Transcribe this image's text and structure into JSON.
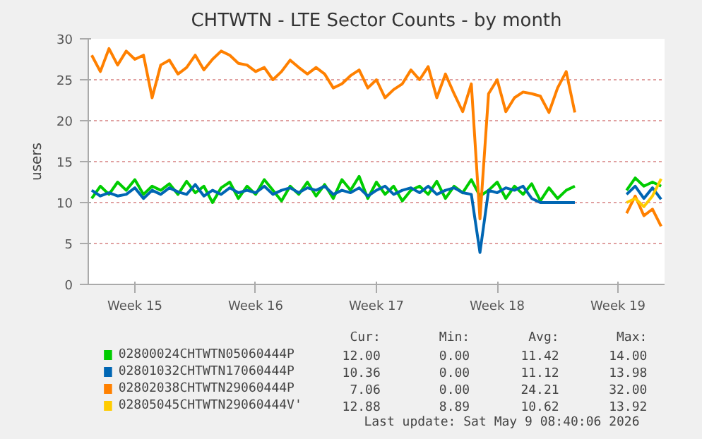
{
  "chart_data": {
    "type": "line",
    "title": "CHTWTN - LTE Sector Counts - by month",
    "ylabel": "users",
    "categories": [
      null,
      null,
      null,
      null,
      null,
      "Week 15",
      null,
      null,
      null,
      null,
      null,
      null,
      null,
      null,
      null,
      null,
      null,
      null,
      null,
      "Week 16",
      null,
      null,
      null,
      null,
      null,
      null,
      null,
      null,
      null,
      null,
      null,
      null,
      null,
      "Week 17",
      null,
      null,
      null,
      null,
      null,
      null,
      null,
      null,
      null,
      null,
      null,
      null,
      null,
      "Week 18",
      null,
      null,
      null,
      null,
      null,
      null,
      null,
      null,
      null,
      null,
      null,
      null,
      null,
      "Week 19",
      null,
      null,
      null,
      null,
      null
    ],
    "ylim": [
      0,
      30
    ],
    "yticks": [
      0,
      5,
      10,
      15,
      20,
      25,
      30
    ],
    "grid": "y",
    "legend": "bottom",
    "series": [
      {
        "name": "02800024CHTWTN05060444P",
        "color": "#00cc00",
        "values": [
          10.5,
          12,
          11,
          12.5,
          11.5,
          12.8,
          11,
          12,
          11.5,
          12.3,
          11,
          12.6,
          11.2,
          12,
          10,
          11.8,
          12.5,
          10.5,
          12,
          11,
          12.8,
          11.5,
          10.2,
          12,
          11,
          12.5,
          10.8,
          12.2,
          10.5,
          12.8,
          11.5,
          13.2,
          10.5,
          12.5,
          11,
          12,
          10.2,
          11.5,
          12,
          11,
          12.6,
          10.5,
          12,
          11.2,
          12.8,
          10.8,
          11.5,
          12.5,
          10.5,
          12,
          11,
          12.3,
          10.2,
          11.8,
          10.5,
          11.5,
          12,
          null,
          null,
          null,
          null,
          null,
          11.5,
          13,
          12,
          12.5,
          12
        ]
      },
      {
        "name": "02801032CHTWTN17060444P",
        "color": "#0066b3",
        "values": [
          11.5,
          10.8,
          11.2,
          10.8,
          11,
          11.8,
          10.5,
          11.5,
          11,
          11.8,
          11.3,
          11,
          12.2,
          10.8,
          11.5,
          11,
          11.8,
          11.2,
          11.5,
          11.2,
          12,
          11,
          11.5,
          11.8,
          11.2,
          11.8,
          11.5,
          12,
          11,
          11.5,
          11.2,
          11.8,
          10.8,
          11.5,
          12,
          11,
          11.5,
          11.8,
          11.2,
          12,
          11,
          11.5,
          11.8,
          11.2,
          11,
          3.9,
          11.5,
          11.2,
          11.8,
          11.5,
          12,
          10.5,
          10,
          10,
          10,
          10,
          10,
          null,
          null,
          null,
          null,
          null,
          11,
          12,
          10.5,
          11.8,
          10.4
        ]
      },
      {
        "name": "02802038CHTWTN29060444P",
        "color": "#ff8000",
        "values": [
          28,
          26,
          28.8,
          26.8,
          28.5,
          27.5,
          28,
          22.8,
          26.8,
          27.4,
          25.7,
          26.5,
          28,
          26.2,
          27.5,
          28.5,
          28,
          27,
          26.8,
          26,
          26.5,
          25,
          26,
          27.4,
          26.5,
          25.7,
          26.5,
          25.7,
          24,
          24.5,
          25.5,
          26.2,
          24,
          25,
          22.8,
          23.8,
          24.5,
          26.2,
          25,
          26.6,
          22.8,
          25.7,
          23.3,
          21.1,
          24.5,
          8,
          23.3,
          25,
          21.1,
          22.8,
          23.5,
          23.3,
          23,
          21,
          24,
          26,
          21,
          null,
          null,
          null,
          null,
          null,
          8.7,
          10.8,
          8.4,
          9.2,
          7.1
        ]
      },
      {
        "name": "02805045CHTWTN29060444V'",
        "color": "#ffcc00",
        "values": [
          null,
          null,
          null,
          null,
          null,
          null,
          null,
          null,
          null,
          null,
          null,
          null,
          null,
          null,
          null,
          null,
          null,
          null,
          null,
          null,
          null,
          null,
          null,
          null,
          null,
          null,
          null,
          null,
          null,
          null,
          null,
          null,
          null,
          null,
          null,
          null,
          null,
          null,
          null,
          null,
          null,
          null,
          null,
          null,
          null,
          null,
          null,
          null,
          null,
          null,
          null,
          null,
          null,
          null,
          null,
          null,
          null,
          null,
          null,
          null,
          null,
          null,
          10,
          10.5,
          9.5,
          10.8,
          12.9
        ]
      }
    ],
    "annotations": [
      "Cur:",
      "Min:",
      "Avg:",
      "Max:",
      "12.00",
      "0.00",
      "11.42",
      "14.00",
      "10.36",
      "0.00",
      "11.12",
      "13.98",
      "7.06",
      "0.00",
      "24.21",
      "32.00",
      "12.88",
      "8.89",
      "10.62",
      "13.92",
      "Last update: Sat May  9 08:40:06 2026"
    ]
  }
}
